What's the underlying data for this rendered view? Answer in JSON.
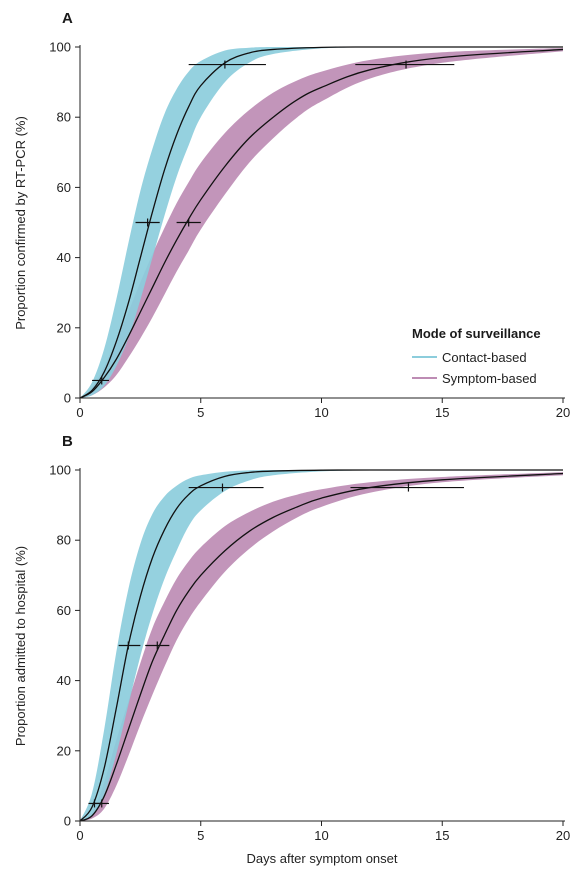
{
  "chart_data": [
    {
      "type": "line",
      "panel": "A",
      "ylabel": "Proportion confirmed by RT-PCR (%)",
      "xlabel": "",
      "xlim": [
        0,
        20
      ],
      "ylim": [
        0,
        100
      ],
      "xticks": [
        "0",
        "5",
        "10",
        "15",
        "20"
      ],
      "yticks": [
        "0",
        "20",
        "40",
        "60",
        "80",
        "100"
      ],
      "legend": {
        "title": "Mode of surveillance",
        "placement": "bottom-right",
        "entries": [
          "Contact-based",
          "Symptom-based"
        ]
      },
      "series": [
        {
          "name": "Contact-based",
          "color": "#8ccddc",
          "x": [
            0,
            0.5,
            1,
            1.5,
            2,
            2.5,
            3,
            3.5,
            4,
            4.5,
            5,
            6,
            7,
            8,
            10,
            12,
            15,
            20
          ],
          "values": [
            0,
            2.2,
            7.4,
            16,
            27,
            40,
            53,
            65,
            75,
            83,
            89,
            95.5,
            98.3,
            99.3,
            99.9,
            100,
            100,
            100
          ],
          "band_lower": [
            0,
            0.8,
            3.5,
            9,
            17,
            28,
            40,
            52,
            63,
            72,
            80,
            90,
            95.5,
            98,
            99.6,
            99.9,
            100,
            100
          ],
          "band_upper": [
            0,
            4.5,
            14,
            28,
            44,
            59,
            71,
            81,
            88,
            93,
            96,
            99,
            99.8,
            100,
            100,
            100,
            100,
            100
          ],
          "markers": [
            {
              "x": 0.9,
              "y": 5,
              "x_low": 0.5,
              "x_high": 1.2
            },
            {
              "x": 2.8,
              "y": 50,
              "x_low": 2.3,
              "x_high": 3.3
            },
            {
              "x": 6.0,
              "y": 95,
              "x_low": 4.5,
              "x_high": 7.7
            }
          ]
        },
        {
          "name": "Symptom-based",
          "color": "#bd8cb4",
          "x": [
            0,
            0.5,
            1,
            1.5,
            2,
            2.5,
            3,
            3.5,
            4,
            4.5,
            5,
            6,
            7,
            8,
            9,
            10,
            12,
            15,
            20
          ],
          "values": [
            0,
            1.8,
            5.8,
            11,
            17.5,
            24.5,
            31.5,
            38.5,
            45,
            51,
            56.5,
            66,
            74,
            80,
            85,
            88.5,
            93.5,
            97,
            99.3
          ],
          "band_lower": [
            0,
            0.8,
            3,
            6.5,
            11.5,
            17,
            23,
            29.5,
            36,
            42,
            48,
            58,
            67,
            74,
            80,
            84.5,
            91,
            95.5,
            98.8
          ],
          "band_upper": [
            0,
            3,
            9,
            16.5,
            24.5,
            33,
            41,
            48.5,
            55.5,
            61.5,
            67,
            75.5,
            82,
            87,
            90.5,
            93,
            96.3,
            98.5,
            99.7
          ],
          "markers": [
            {
              "x": 4.5,
              "y": 50,
              "x_low": 4.0,
              "x_high": 5.0
            },
            {
              "x": 13.5,
              "y": 95,
              "x_low": 11.4,
              "x_high": 15.5
            }
          ]
        }
      ]
    },
    {
      "type": "line",
      "panel": "B",
      "ylabel": "Proportion admitted to hospital (%)",
      "xlabel": "Days after symptom onset",
      "xlim": [
        0,
        20
      ],
      "ylim": [
        0,
        100
      ],
      "xticks": [
        "0",
        "5",
        "10",
        "15",
        "20"
      ],
      "yticks": [
        "0",
        "20",
        "40",
        "60",
        "80",
        "100"
      ],
      "series": [
        {
          "name": "Contact-based",
          "color": "#8ccddc",
          "x": [
            0,
            0.5,
            1,
            1.5,
            2,
            2.5,
            3,
            3.5,
            4,
            4.5,
            5,
            6,
            7,
            8,
            10,
            12,
            15,
            20
          ],
          "values": [
            0,
            4,
            15,
            32,
            50,
            64,
            75,
            83,
            89,
            93,
            95.5,
            98.2,
            99.3,
            99.7,
            99.95,
            100,
            100,
            100
          ],
          "band_lower": [
            0,
            1.5,
            7.5,
            19,
            33,
            47,
            59,
            69,
            77,
            84,
            88.5,
            94,
            97,
            98.5,
            99.6,
            99.9,
            100,
            100
          ],
          "band_upper": [
            0,
            8,
            26,
            48,
            66,
            79,
            87.5,
            92.5,
            95.5,
            97.5,
            98.5,
            99.5,
            99.9,
            100,
            100,
            100,
            100,
            100
          ],
          "markers": [
            {
              "x": 0.6,
              "y": 5,
              "x_low": 0.35,
              "x_high": 0.9
            },
            {
              "x": 2.0,
              "y": 50,
              "x_low": 1.6,
              "x_high": 2.5
            },
            {
              "x": 5.9,
              "y": 95,
              "x_low": 4.5,
              "x_high": 7.6
            }
          ]
        },
        {
          "name": "Symptom-based",
          "color": "#bd8cb4",
          "x": [
            0,
            0.5,
            1,
            1.5,
            2,
            2.5,
            3,
            3.5,
            4,
            4.5,
            5,
            6,
            7,
            8,
            9,
            10,
            12,
            15,
            20
          ],
          "values": [
            0,
            1.5,
            7,
            16,
            26,
            36,
            45.5,
            53,
            60,
            65.5,
            70,
            77,
            82.5,
            86.5,
            89.5,
            92,
            95,
            97.2,
            99
          ],
          "band_lower": [
            0,
            0.7,
            3.5,
            10,
            18.5,
            27.5,
            36,
            44,
            51.5,
            57.5,
            62.5,
            71,
            77.5,
            82.5,
            86.5,
            89.5,
            93.5,
            96.5,
            98.5
          ],
          "band_upper": [
            0,
            2.5,
            11,
            23,
            34,
            45,
            55,
            62.5,
            69,
            74,
            78,
            84,
            88,
            91,
            93,
            94.5,
            96.5,
            98,
            99.4
          ],
          "markers": [
            {
              "x": 0.9,
              "y": 5,
              "x_low": 0.6,
              "x_high": 1.2
            },
            {
              "x": 3.2,
              "y": 50,
              "x_low": 2.7,
              "x_high": 3.7
            },
            {
              "x": 13.6,
              "y": 95,
              "x_low": 11.2,
              "x_high": 15.9
            }
          ]
        }
      ]
    }
  ]
}
